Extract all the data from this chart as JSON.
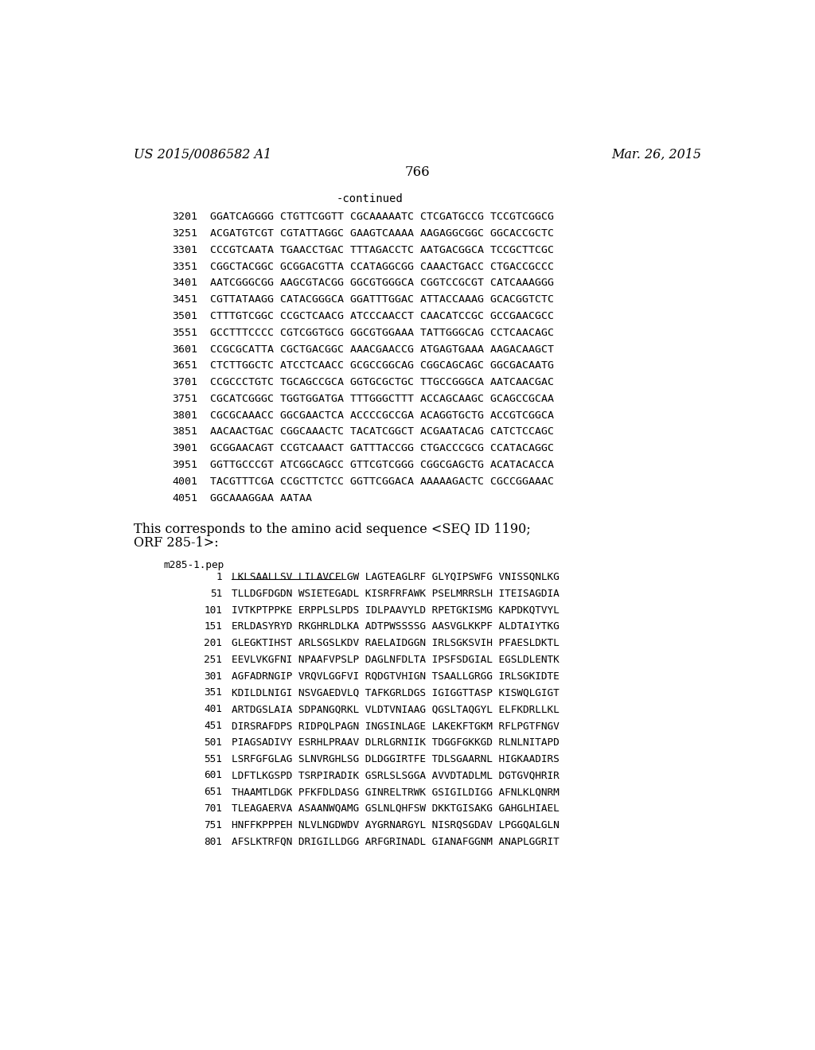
{
  "background_color": "#ffffff",
  "header_left": "US 2015/0086582 A1",
  "header_right": "Mar. 26, 2015",
  "page_number": "766",
  "continued_label": "-continued",
  "dna_lines": [
    [
      "3201",
      "GGATCAGGGG CTGTTCGGTT CGCAAAAATC CTCGATGCCG TCCGTCGGCG"
    ],
    [
      "3251",
      "ACGATGTCGT CGTATTAGGC GAAGTCAAAA AAGAGGCGGC GGCACCGCTC"
    ],
    [
      "3301",
      "CCCGTCAATA TGAACCTGAC TTTAGACCTC AATGACGGCA TCCGCTTCGC"
    ],
    [
      "3351",
      "CGGCTACGGC GCGGACGTTA CCATAGGCGG CAAACTGACC CTGACCGCCC"
    ],
    [
      "3401",
      "AATCGGGCGG AAGCGTACGG GGCGTGGGCA CGGTCCGCGT CATCAAAGGG"
    ],
    [
      "3451",
      "CGTTATAAGG CATACGGGCA GGATTTGGAC ATTACCAAAG GCACGGTCTC"
    ],
    [
      "3501",
      "CTTTGTCGGC CCGCTCAACG ATCCCAACCT CAACATCCGC GCCGAACGCC"
    ],
    [
      "3551",
      "GCCTTTCCCC CGTCGGTGCG GGCGTGGAAA TATTGGGCAG CCTCAACAGC"
    ],
    [
      "3601",
      "CCGCGCATTA CGCTGACGGC AAACGAACCG ATGAGTGAAA AAGACAAGCT"
    ],
    [
      "3651",
      "CTCTTGGCTC ATCCTCAACC GCGCCGGCAG CGGCAGCAGC GGCGACAATG"
    ],
    [
      "3701",
      "CCGCCCTGTC TGCAGCCGCA GGTGCGCTGC TTGCCGGGCA AATCAACGAC"
    ],
    [
      "3751",
      "CGCATCGGGC TGGTGGATGA TTTGGGCTTT ACCAGCAAGC GCAGCCGCAA"
    ],
    [
      "3801",
      "CGCGCAAACC GGCGAACTCA ACCCCGCCGA ACAGGTGCTG ACCGTCGGCA"
    ],
    [
      "3851",
      "AACAACTGAC CGGCAAACTC TACATCGGCT ACGAATACAG CATCTCCAGC"
    ],
    [
      "3901",
      "GCGGAACAGT CCGTCAAACT GATTTACCGG CTGACCCGCG CCATACAGGC"
    ],
    [
      "3951",
      "GGTTGCCCGT ATCGGCAGCC GTTCGTCGGG CGGCGAGCTG ACATACACCA"
    ],
    [
      "4001",
      "TACGTTTCGA CCGCTTCTCC GGTTCGGACA AAAAAGACTC CGCCGGAAAC"
    ],
    [
      "4051",
      "GGCAAAGGAA AATAA"
    ]
  ],
  "transition_text_line1": "This corresponds to the amino acid sequence <SEQ ID 1190;",
  "transition_text_line2": "ORF 285-1>:",
  "protein_header": "m285-1.pep",
  "protein_lines": [
    [
      "1",
      "LKLSAALLSV LILAVCFLGW LAGTEAGLRF GLYQIPSWFG VNISSQNLKG",
      true
    ],
    [
      "51",
      "TLLDGFDGDN WSIETEGADL KISRFRFAWK PSELMRRSLH ITEISAGDIA",
      false
    ],
    [
      "101",
      "IVTKPTPPKE ERPPLSLPDS IDLPAAVYLD RPETGKISMG KAPDKQTVYL",
      false
    ],
    [
      "151",
      "ERLDASYRYD RKGHRLDLKA ADTPWSSSSG AASVGLKKPF ALDTAIYTKG",
      false
    ],
    [
      "201",
      "GLEGKTIHST ARLSGSLKDV RAELAIDGGN IRLSGKSVIH PFAESLDKTL",
      false
    ],
    [
      "251",
      "EEVLVKGFNI NPAAFVPSLP DAGLNFDLTA IPSFSDGIAL EGSLDLENTK",
      false
    ],
    [
      "301",
      "AGFADRNGIP VRQVLGGFVI RQDGTVHIGN TSAALLGRGG IRLSGKIDTE",
      false
    ],
    [
      "351",
      "KDILDLNIGI NSVGAEDVLQ TAFKGRLDGS IGIGGTTASP KISWQLGIGT",
      false
    ],
    [
      "401",
      "ARTDGSLAIA SDPANGQRKL VLDTVNIAAG QGSLTAQGYL ELFKDRLLKL",
      false
    ],
    [
      "451",
      "DIRSRAFDPS RIDPQLPAGN INGSINLAGE LAKEKFTGKM RFLPGTFNGV",
      false
    ],
    [
      "501",
      "PIAGSADIVY ESRHLPRAAV DLRLGRNIIK TDGGFGKKGD RLNLNITAPD",
      false
    ],
    [
      "551",
      "LSRFGFGLAG SLNVRGHLSG DLDGGIRTFE TDLSGAARNL HIGKAADIRS",
      false
    ],
    [
      "601",
      "LDFTLKGSPD TSRPIRADIK GSRLSLSGGA AVVDTADLML DGTGVQHRIR",
      false
    ],
    [
      "651",
      "THAAMTLDGK PFKFDLDASG GINRELTRWK GSIGILDIGG AFNLKLQNRM",
      false
    ],
    [
      "701",
      "TLEAGAERVA ASAANWQAMG GSLNLQHFSW DKKTGISAKG GAHGLHIAEL",
      false
    ],
    [
      "751",
      "HNFFKPPPEH NLVLNGDWDV AYGRNARGYL NISRQSGDAV LPGGQALGLN",
      false
    ],
    [
      "801",
      "AFSLKTRFQN DRIGILLDGG ARFGRINADL GIANAFGGNM ANAPLGGRIT",
      false
    ]
  ],
  "underline_text": "LKLSAALLSV LILAVCFLGW LAGTEAGLRF"
}
